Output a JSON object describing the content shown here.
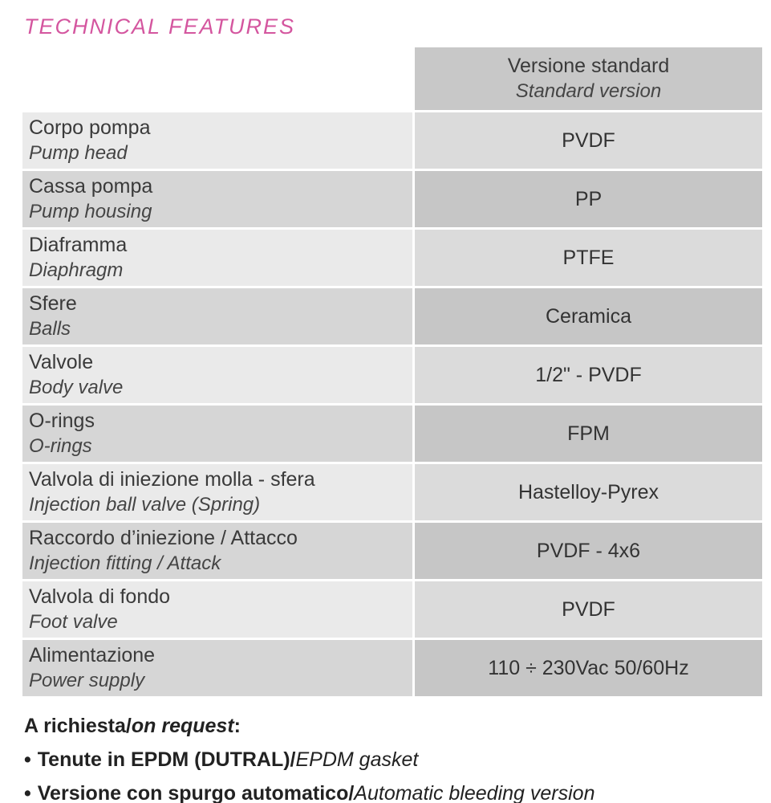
{
  "title": "TECHNICAL FEATURES",
  "accent_color": "#d4569f",
  "table": {
    "header": {
      "title_it": "Versione standard",
      "title_en": "Standard version"
    },
    "rows": [
      {
        "label_it": "Corpo pompa",
        "label_en": "Pump head",
        "value": "PVDF"
      },
      {
        "label_it": "Cassa pompa",
        "label_en": "Pump housing",
        "value": "PP"
      },
      {
        "label_it": "Diaframma",
        "label_en": "Diaphragm",
        "value": "PTFE"
      },
      {
        "label_it": "Sfere",
        "label_en": "Balls",
        "value": "Ceramica"
      },
      {
        "label_it": "Valvole",
        "label_en": "Body valve",
        "value": "1/2\" - PVDF"
      },
      {
        "label_it": "O-rings",
        "label_en": "O-rings",
        "value": "FPM"
      },
      {
        "label_it": "Valvola di iniezione molla - sfera",
        "label_en": "Injection ball valve (Spring)",
        "value": "Hastelloy-Pyrex"
      },
      {
        "label_it": "Raccordo d’iniezione / Attacco",
        "label_en": "Injection fitting / Attack",
        "value": "PVDF - 4x6"
      },
      {
        "label_it": "Valvola di fondo",
        "label_en": "Foot valve",
        "value": "PVDF"
      },
      {
        "label_it": "Alimentazione",
        "label_en": "Power supply",
        "value": "110 ÷ 230Vac 50/60Hz"
      }
    ]
  },
  "notes": {
    "heading": {
      "bold": "A richiesta/",
      "italic": "on request",
      "suffix": ":"
    },
    "bullet": "•",
    "items": [
      {
        "bold": "Tenute in EPDM (DUTRAL)/",
        "italic": "EPDM gasket"
      },
      {
        "bold": "Versione con spurgo automatico/",
        "italic": "Automatic bleeding version"
      }
    ]
  }
}
